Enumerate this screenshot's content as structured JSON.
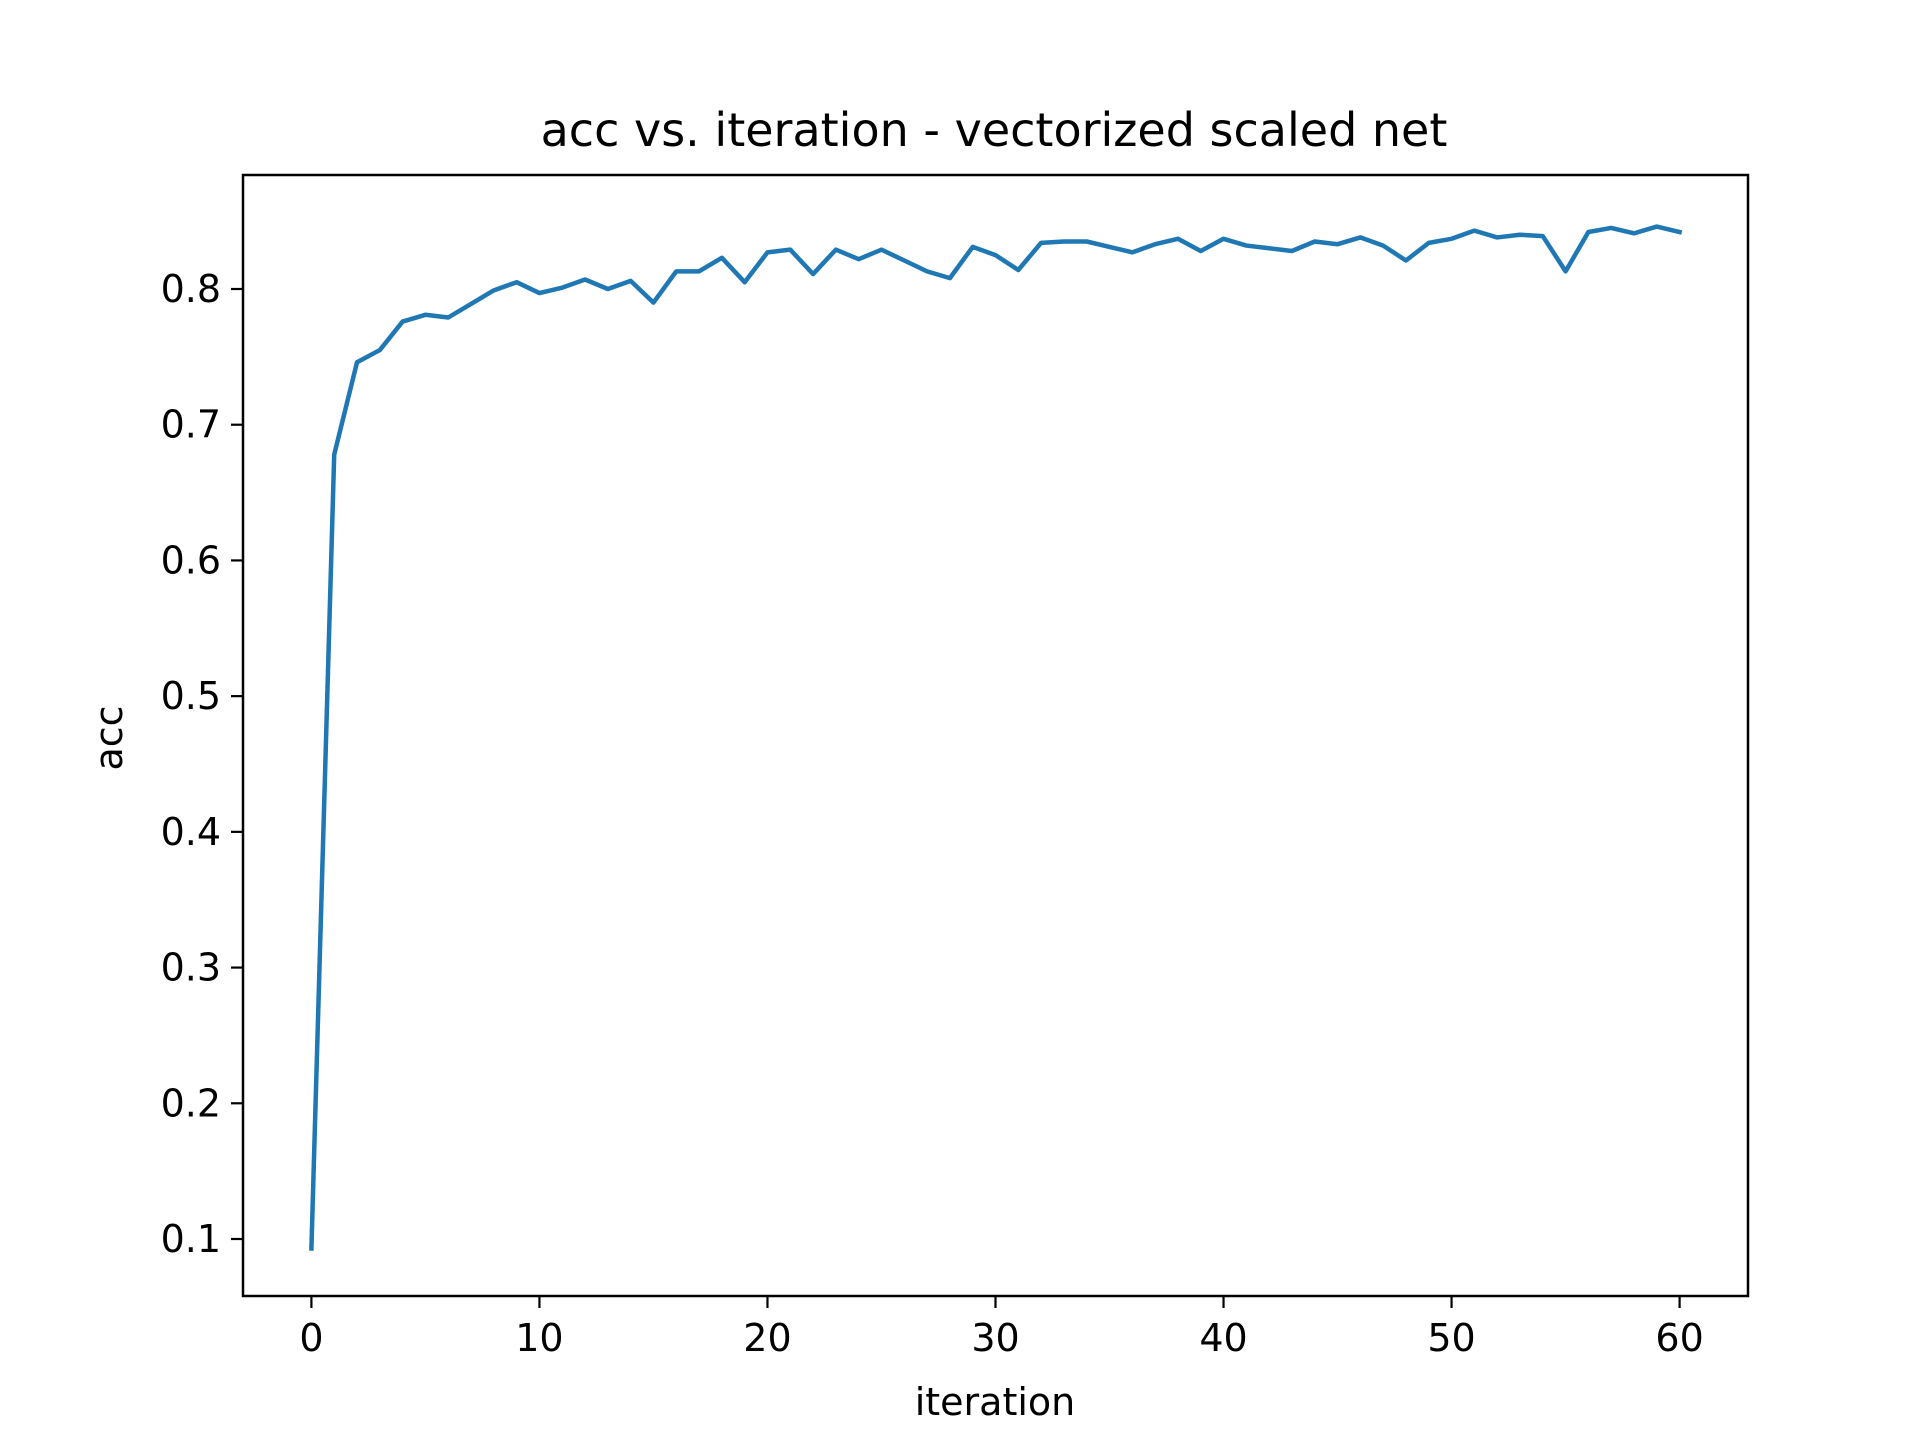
{
  "chart_data": {
    "type": "line",
    "title": "acc vs. iteration - vectorized scaled net",
    "xlabel": "iteration",
    "ylabel": "acc",
    "xlim": [
      -3,
      63
    ],
    "ylim": [
      0.058,
      0.884
    ],
    "xticks": [
      0,
      10,
      20,
      30,
      40,
      50,
      60
    ],
    "yticks": [
      0.1,
      0.2,
      0.3,
      0.4,
      0.5,
      0.6,
      0.7,
      0.8
    ],
    "grid": false,
    "legend": "none",
    "series": [
      {
        "color": "#1f77b4",
        "x": [
          0,
          1,
          2,
          3,
          4,
          5,
          6,
          7,
          8,
          9,
          10,
          11,
          12,
          13,
          14,
          15,
          16,
          17,
          18,
          19,
          20,
          21,
          22,
          23,
          24,
          25,
          26,
          27,
          28,
          29,
          30,
          31,
          32,
          33,
          34,
          35,
          36,
          37,
          38,
          39,
          40,
          41,
          42,
          43,
          44,
          45,
          46,
          47,
          48,
          49,
          50,
          51,
          52,
          53,
          54,
          55,
          56,
          57,
          58,
          59,
          60
        ],
        "y": [
          0.093,
          0.678,
          0.746,
          0.755,
          0.776,
          0.781,
          0.779,
          0.789,
          0.799,
          0.805,
          0.797,
          0.801,
          0.807,
          0.8,
          0.806,
          0.79,
          0.813,
          0.813,
          0.823,
          0.805,
          0.827,
          0.829,
          0.811,
          0.829,
          0.822,
          0.829,
          0.821,
          0.813,
          0.808,
          0.831,
          0.825,
          0.814,
          0.834,
          0.835,
          0.835,
          0.831,
          0.827,
          0.833,
          0.837,
          0.828,
          0.837,
          0.832,
          0.83,
          0.828,
          0.835,
          0.833,
          0.838,
          0.832,
          0.821,
          0.834,
          0.837,
          0.843,
          0.838,
          0.84,
          0.839,
          0.813,
          0.842,
          0.845,
          0.841,
          0.846,
          0.842
        ]
      }
    ]
  }
}
